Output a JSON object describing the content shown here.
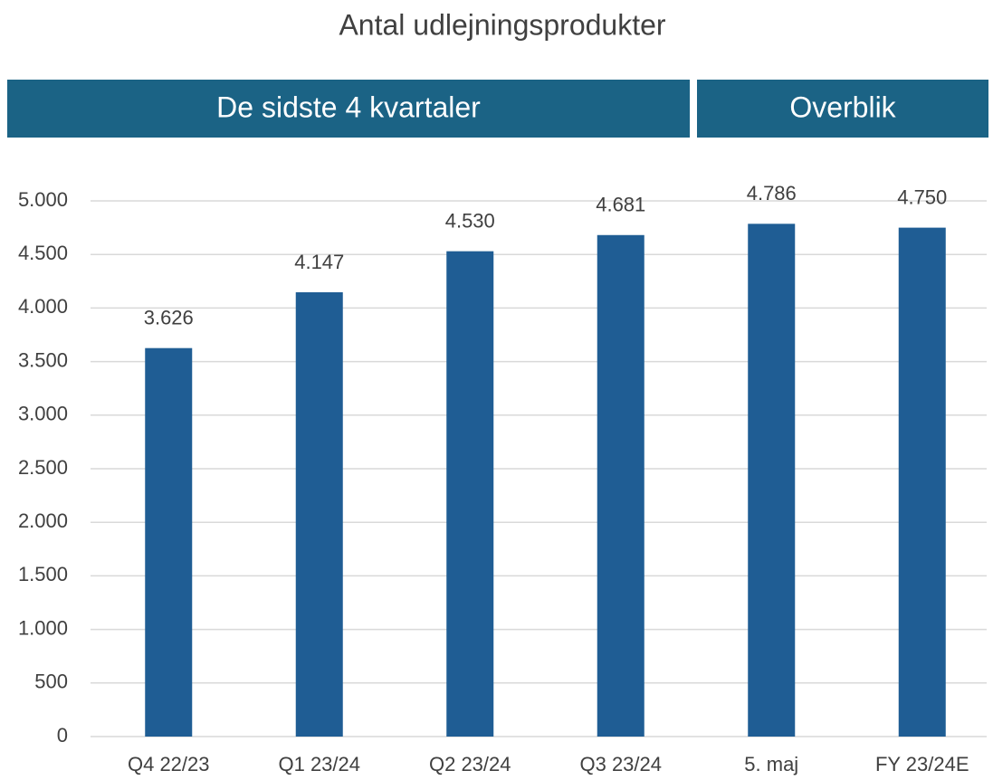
{
  "chart_data": {
    "type": "bar",
    "title": "Antal udlejningsprodukter",
    "annotations": [
      "De sidste 4 kvartaler",
      "Overblik"
    ],
    "categories": [
      "Q4 22/23",
      "Q1 23/24",
      "Q2 23/24",
      "Q3 23/24",
      "5. maj",
      "FY 23/24E"
    ],
    "values": [
      3626,
      4147,
      4530,
      4681,
      4786,
      4750
    ],
    "value_labels": [
      "3.626",
      "4.147",
      "4.530",
      "4.681",
      "4.786",
      "4.750"
    ],
    "color": "#1f5d94",
    "ylim": [
      0,
      5000
    ],
    "yticks": [
      0,
      500,
      {
        "value": 1000,
        "label": "1.000"
      },
      {
        "value": 1500,
        "label": "1.500"
      },
      {
        "value": 2000,
        "label": "2.000"
      },
      {
        "value": 2500,
        "label": "2.500"
      },
      {
        "value": 3000,
        "label": "3.000"
      },
      {
        "value": 3500,
        "label": "3.500"
      },
      {
        "value": 4000,
        "label": "4.000"
      },
      {
        "value": 4500,
        "label": "4.500"
      },
      {
        "value": 5000,
        "label": "5.000"
      }
    ],
    "grid": true
  }
}
